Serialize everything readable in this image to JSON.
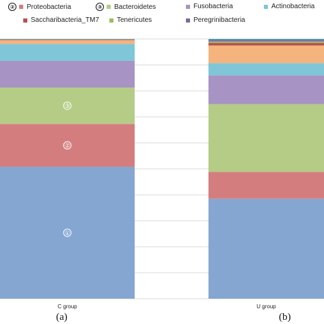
{
  "chart_data": {
    "type": "bar",
    "stacked": true,
    "normalized": true,
    "categories": [
      "C group",
      "U group"
    ],
    "ylim": [
      0,
      1
    ],
    "grid": true,
    "legend_position": "top",
    "series": [
      {
        "name": "",
        "color": "#86a6d2",
        "values": [
          0.508,
          0.385
        ]
      },
      {
        "name": "Proteobacteria",
        "color": "#d47d7e",
        "values": [
          0.165,
          0.103
        ]
      },
      {
        "name": "Bacteroidetes",
        "color": "#b4cc86",
        "values": [
          0.14,
          0.261
        ]
      },
      {
        "name": "Fusobacteria",
        "color": "#a793c4",
        "values": [
          0.103,
          0.111
        ]
      },
      {
        "name": "Actinobacteria",
        "color": "#7fc6d8",
        "values": [
          0.065,
          0.047
        ]
      },
      {
        "name": "",
        "color": "#f5b37d",
        "values": [
          0.014,
          0.068
        ]
      },
      {
        "name": "Saccharibacteria_TM7",
        "color": "#b4524f",
        "values": [
          0.002,
          0.01
        ]
      },
      {
        "name": "Tenericutes",
        "color": "#9bbd5d",
        "values": [
          0.001,
          0.005
        ]
      },
      {
        "name": "Peregrinibacteria",
        "color": "#7a6a9e",
        "values": [
          0.001,
          0.005
        ]
      },
      {
        "name": "",
        "color": "#4e8faa",
        "values": [
          0.001,
          0.005
        ]
      }
    ],
    "segment_markers": [
      {
        "category": "C group",
        "series_index": 0,
        "text": "①"
      },
      {
        "category": "C group",
        "series_index": 1,
        "text": "②"
      },
      {
        "category": "C group",
        "series_index": 2,
        "text": "③"
      }
    ]
  },
  "legend": [
    {
      "marker": "②",
      "label": "Proteobacteria",
      "color": "#d47d7e"
    },
    {
      "marker": "③",
      "label": "Bacteroidetes",
      "color": "#b4cc86"
    },
    {
      "marker": "",
      "label": "Fusobacteria",
      "color": "#a793c4"
    },
    {
      "marker": "",
      "label": "Actinobacteria",
      "color": "#7fc6d8"
    },
    {
      "marker": "",
      "label": "Saccharibacteria_TM7",
      "color": "#b4524f"
    },
    {
      "marker": "",
      "label": "Tenericutes",
      "color": "#9bbd5d"
    },
    {
      "marker": "",
      "label": "Peregrinibacteria",
      "color": "#7a6a9e"
    }
  ],
  "captions": [
    "(a)",
    "(b)"
  ]
}
